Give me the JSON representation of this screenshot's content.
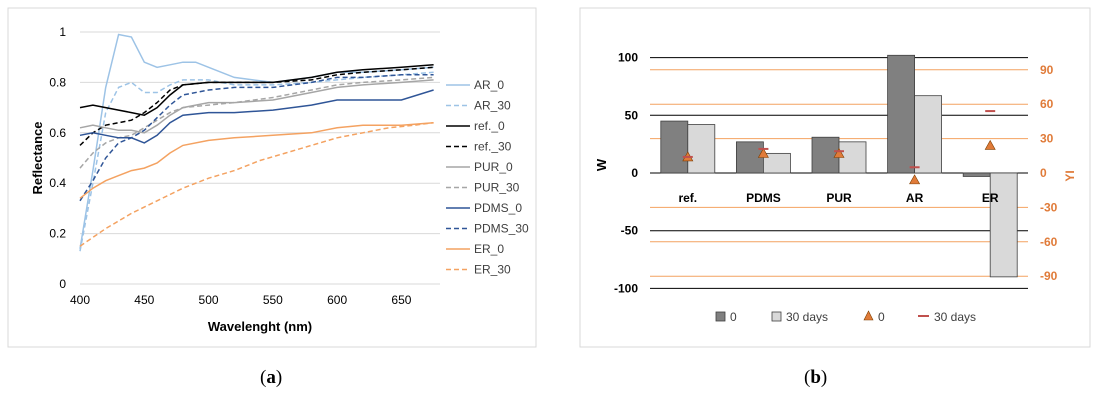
{
  "captions": {
    "a_letter": "a",
    "b_letter": "b"
  },
  "chart_data": [
    {
      "type": "line",
      "xlabel": "Wavelenght (nm)",
      "ylabel": "Reflectance",
      "xlim": [
        400,
        680
      ],
      "ylim": [
        0,
        1
      ],
      "xticks": [
        "400",
        "450",
        "500",
        "550",
        "600",
        "650"
      ],
      "yticks": [
        "0",
        "0.2",
        "0.4",
        "0.6",
        "0.8",
        "1"
      ],
      "grid": true,
      "legend": "right",
      "series": [
        {
          "name": "AR_0",
          "color": "#9dc3e6",
          "dash": "solid",
          "x": [
            400,
            410,
            420,
            430,
            440,
            450,
            460,
            470,
            480,
            490,
            500,
            520,
            550,
            580,
            600,
            620,
            650,
            675
          ],
          "y": [
            0.14,
            0.45,
            0.78,
            0.99,
            0.98,
            0.88,
            0.86,
            0.87,
            0.88,
            0.88,
            0.86,
            0.82,
            0.8,
            0.82,
            0.84,
            0.84,
            0.85,
            0.86
          ]
        },
        {
          "name": "AR_30",
          "color": "#9dc3e6",
          "dash": "dashed",
          "x": [
            400,
            410,
            420,
            430,
            440,
            450,
            460,
            470,
            480,
            500,
            520,
            550,
            580,
            600,
            620,
            650,
            675
          ],
          "y": [
            0.13,
            0.4,
            0.68,
            0.78,
            0.8,
            0.76,
            0.76,
            0.79,
            0.81,
            0.81,
            0.79,
            0.79,
            0.8,
            0.81,
            0.82,
            0.83,
            0.84
          ]
        },
        {
          "name": "ref._0",
          "color": "#000000",
          "dash": "solid",
          "x": [
            400,
            410,
            420,
            430,
            440,
            450,
            460,
            470,
            480,
            500,
            520,
            550,
            580,
            600,
            620,
            650,
            675
          ],
          "y": [
            0.7,
            0.71,
            0.7,
            0.69,
            0.68,
            0.67,
            0.7,
            0.75,
            0.79,
            0.8,
            0.8,
            0.8,
            0.82,
            0.84,
            0.85,
            0.86,
            0.87
          ]
        },
        {
          "name": "ref._30",
          "color": "#000000",
          "dash": "dashed",
          "x": [
            400,
            410,
            420,
            430,
            440,
            450,
            460,
            470,
            480,
            500,
            520,
            550,
            580,
            600,
            620,
            650,
            675
          ],
          "y": [
            0.55,
            0.6,
            0.63,
            0.64,
            0.65,
            0.68,
            0.72,
            0.77,
            0.79,
            0.8,
            0.8,
            0.8,
            0.81,
            0.83,
            0.84,
            0.85,
            0.86
          ]
        },
        {
          "name": "PUR_0",
          "color": "#a6a6a6",
          "dash": "solid",
          "x": [
            400,
            410,
            420,
            430,
            440,
            450,
            460,
            470,
            480,
            500,
            520,
            550,
            580,
            600,
            620,
            650,
            675
          ],
          "y": [
            0.62,
            0.63,
            0.62,
            0.61,
            0.61,
            0.6,
            0.63,
            0.67,
            0.7,
            0.72,
            0.72,
            0.73,
            0.76,
            0.78,
            0.79,
            0.8,
            0.81
          ]
        },
        {
          "name": "PUR_30",
          "color": "#a6a6a6",
          "dash": "dashed",
          "x": [
            400,
            410,
            420,
            430,
            440,
            450,
            460,
            470,
            480,
            500,
            520,
            550,
            580,
            600,
            620,
            650,
            675
          ],
          "y": [
            0.46,
            0.52,
            0.56,
            0.58,
            0.59,
            0.62,
            0.65,
            0.68,
            0.7,
            0.71,
            0.72,
            0.74,
            0.77,
            0.79,
            0.8,
            0.81,
            0.82
          ]
        },
        {
          "name": "PDMS_0",
          "color": "#2f5597",
          "dash": "solid",
          "x": [
            400,
            410,
            420,
            430,
            440,
            450,
            460,
            470,
            480,
            500,
            520,
            550,
            580,
            600,
            620,
            650,
            675
          ],
          "y": [
            0.59,
            0.6,
            0.59,
            0.58,
            0.58,
            0.56,
            0.59,
            0.64,
            0.67,
            0.68,
            0.68,
            0.69,
            0.71,
            0.73,
            0.73,
            0.73,
            0.77
          ]
        },
        {
          "name": "PDMS_30",
          "color": "#2f5597",
          "dash": "dashed",
          "x": [
            400,
            410,
            420,
            430,
            440,
            450,
            460,
            470,
            480,
            500,
            520,
            550,
            580,
            600,
            620,
            650,
            675
          ],
          "y": [
            0.33,
            0.41,
            0.5,
            0.56,
            0.58,
            0.61,
            0.66,
            0.71,
            0.75,
            0.77,
            0.78,
            0.78,
            0.8,
            0.82,
            0.82,
            0.83,
            0.83
          ]
        },
        {
          "name": "ER_0",
          "color": "#f4a261",
          "dash": "solid",
          "x": [
            400,
            410,
            420,
            430,
            440,
            450,
            460,
            470,
            480,
            500,
            520,
            550,
            580,
            600,
            620,
            650,
            675
          ],
          "y": [
            0.34,
            0.38,
            0.41,
            0.43,
            0.45,
            0.46,
            0.48,
            0.52,
            0.55,
            0.57,
            0.58,
            0.59,
            0.6,
            0.62,
            0.63,
            0.63,
            0.64
          ]
        },
        {
          "name": "ER_30",
          "color": "#f4a261",
          "dash": "dashed",
          "x": [
            400,
            420,
            440,
            460,
            480,
            500,
            520,
            540,
            560,
            580,
            600,
            620,
            640,
            660,
            675
          ],
          "y": [
            0.15,
            0.22,
            0.28,
            0.33,
            0.38,
            0.42,
            0.45,
            0.49,
            0.52,
            0.55,
            0.58,
            0.6,
            0.62,
            0.63,
            0.64
          ]
        }
      ]
    },
    {
      "type": "bar",
      "ylabel": "W",
      "y2label": "YI",
      "ylim": [
        -100,
        120
      ],
      "y2lim": [
        -90,
        108
      ],
      "yticks": [
        "100",
        "50",
        "0",
        "-50",
        "-100"
      ],
      "y2ticks": [
        "90",
        "60",
        "30",
        "0",
        "-30",
        "-60",
        "-90"
      ],
      "categories": [
        "ref.",
        "PDMS",
        "PUR",
        "AR",
        "ER"
      ],
      "legend": "bottom",
      "series": [
        {
          "name": "0",
          "kind": "bar",
          "axis": "left",
          "color": "#808080",
          "values": [
            45,
            27,
            31,
            102,
            -3
          ]
        },
        {
          "name": "30 days",
          "kind": "bar",
          "axis": "left",
          "color": "#d9d9d9",
          "values": [
            42,
            17,
            27,
            67,
            -90
          ]
        },
        {
          "name": "0",
          "kind": "marker-triangle",
          "axis": "right",
          "color": "#e07b39",
          "values": [
            14,
            17,
            17,
            -6,
            24
          ]
        },
        {
          "name": "30 days",
          "kind": "marker-dash",
          "axis": "right",
          "color": "#c0504d",
          "values": [
            14,
            21,
            19,
            5,
            54
          ]
        }
      ]
    }
  ]
}
